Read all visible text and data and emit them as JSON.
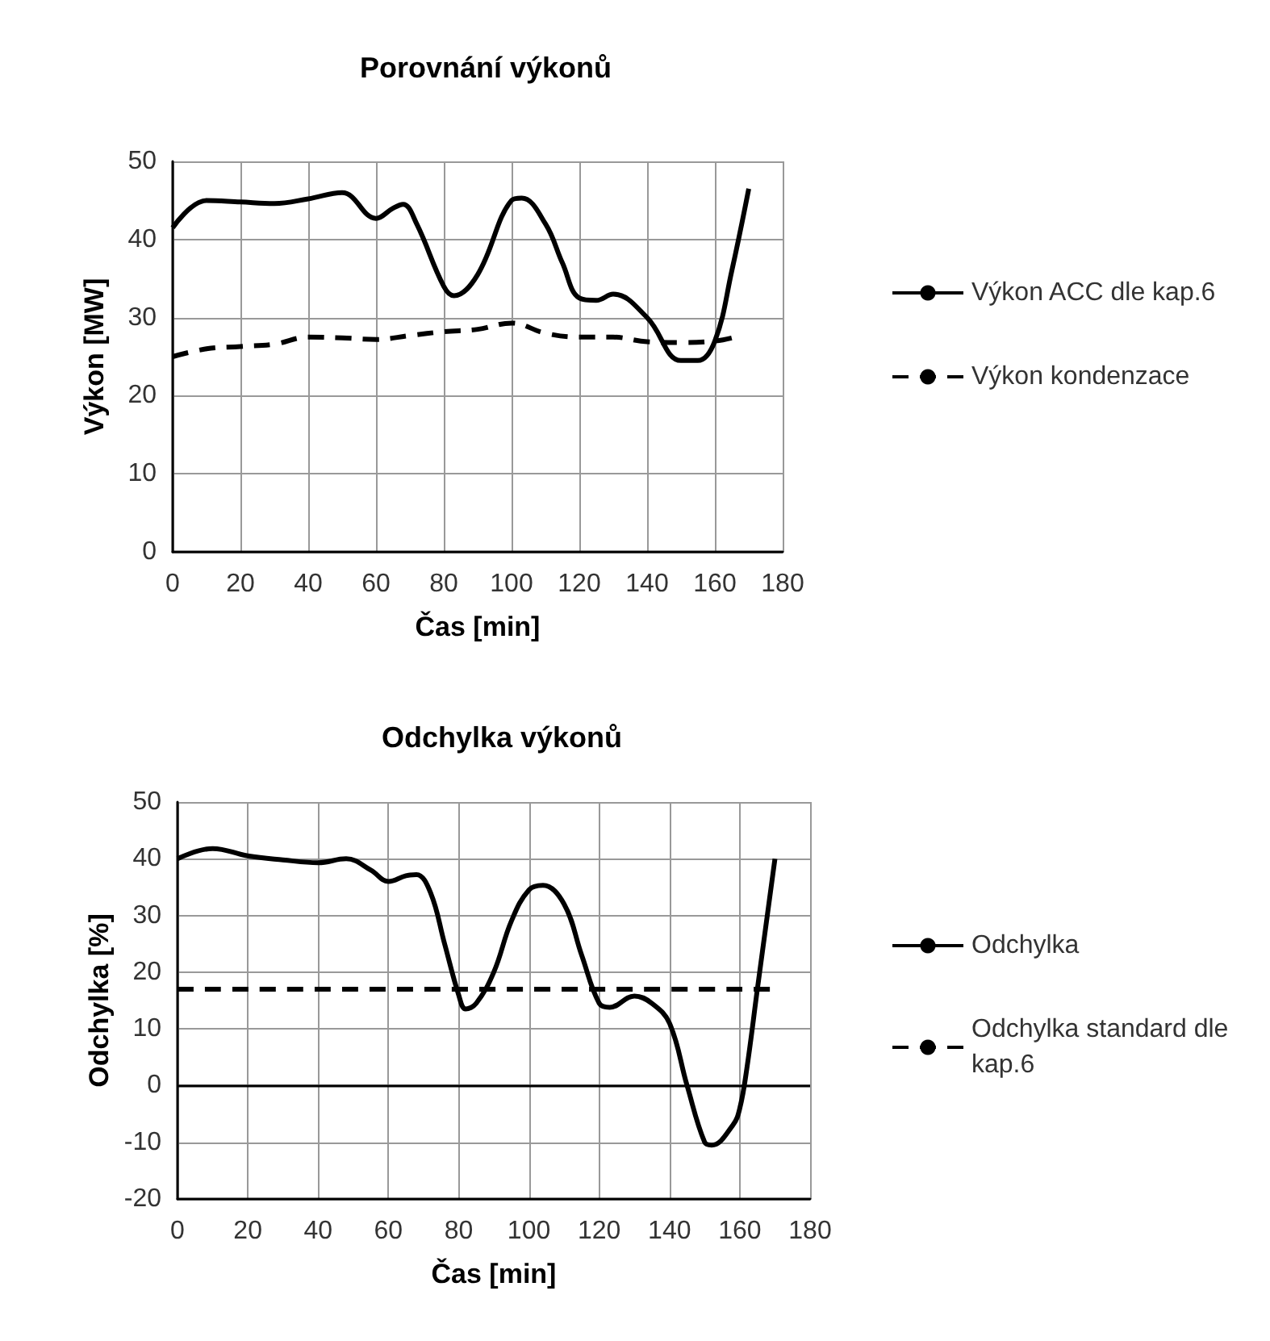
{
  "chart_data": [
    {
      "type": "line",
      "title": "Porovnání výkonů",
      "xlabel": "Čas [min]",
      "ylabel": "Výkon [MW]",
      "xlim": [
        0,
        180
      ],
      "xticks": [
        0,
        20,
        40,
        60,
        80,
        100,
        120,
        140,
        160,
        180
      ],
      "ylim": [
        0,
        50
      ],
      "yticks": [
        0,
        10,
        20,
        30,
        40,
        50
      ],
      "grid": true,
      "legend": "right",
      "marker": "none",
      "series": [
        {
          "name": "Výkon ACC dle kap.6",
          "color": "#000000",
          "line_style": "solid",
          "x": [
            0,
            10,
            20,
            30,
            40,
            50,
            60,
            65,
            68,
            72,
            80,
            83,
            90,
            100,
            103,
            110,
            115,
            120,
            125,
            130,
            140,
            150,
            155,
            160,
            165,
            170
          ],
          "values": [
            41.5,
            45,
            44.8,
            44.6,
            45.2,
            46,
            42.7,
            44,
            44.5,
            42,
            34,
            32.8,
            35.5,
            45,
            45.3,
            42,
            37,
            32.5,
            32.2,
            33,
            30,
            24.5,
            24.5,
            27,
            36,
            46.5
          ]
        },
        {
          "name": "Výkon kondenzace",
          "color": "#000000",
          "line_style": "dashed",
          "x": [
            0,
            10,
            20,
            30,
            40,
            50,
            60,
            70,
            80,
            90,
            100,
            110,
            120,
            130,
            140,
            150,
            160,
            165
          ],
          "values": [
            25,
            26,
            26.3,
            26.6,
            27.5,
            27.4,
            27.2,
            27.7,
            28.2,
            28.5,
            29.3,
            28,
            27.5,
            27.5,
            26.9,
            26.8,
            27,
            27.4
          ]
        }
      ]
    },
    {
      "type": "line",
      "title": "Odchylka výkonů",
      "xlabel": "Čas [min]",
      "ylabel": "Odchylka [%]",
      "xlim": [
        0,
        180
      ],
      "xticks": [
        0,
        20,
        40,
        60,
        80,
        100,
        120,
        140,
        160,
        180
      ],
      "ylim": [
        -20,
        50
      ],
      "yticks": [
        -20,
        -10,
        0,
        10,
        20,
        30,
        40,
        50
      ],
      "grid": true,
      "legend": "right",
      "marker": "none",
      "ref_lines": [
        {
          "axis": "y",
          "value": 0,
          "color": "#000000",
          "line_style": "solid"
        }
      ],
      "series": [
        {
          "name": "Odchylka",
          "color": "#000000",
          "line_style": "solid",
          "x": [
            0,
            10,
            20,
            30,
            40,
            48,
            55,
            60,
            65,
            68,
            72,
            76,
            80,
            82,
            85,
            90,
            95,
            100,
            104,
            110,
            115,
            120,
            123,
            130,
            135,
            140,
            145,
            150,
            152,
            158,
            160,
            162,
            165,
            170
          ],
          "values": [
            40,
            41.8,
            40.5,
            39.8,
            39.3,
            40,
            38,
            36,
            37,
            37.2,
            34,
            25,
            16,
            13.5,
            14.5,
            20,
            29,
            34.5,
            35.3,
            32,
            23,
            14.5,
            13.8,
            15.8,
            14.5,
            11,
            0,
            -10,
            -10.5,
            -7,
            -4,
            3,
            17,
            40
          ]
        },
        {
          "name": "Odchylka standard dle kap.6",
          "color": "#000000",
          "line_style": "dashed",
          "x": [
            0,
            170
          ],
          "values": [
            17,
            17
          ]
        }
      ]
    }
  ]
}
